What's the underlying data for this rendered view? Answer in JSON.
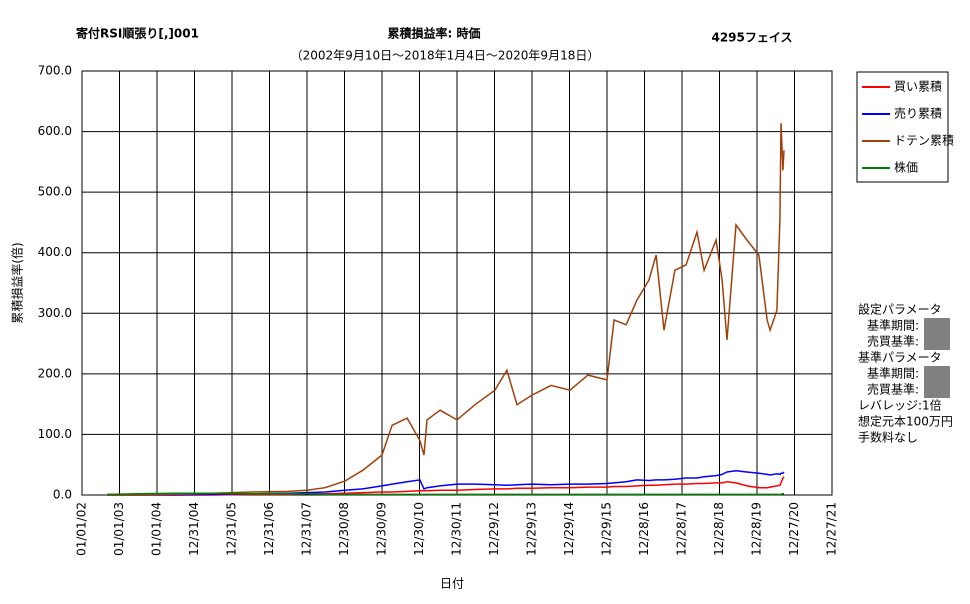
{
  "chart_data": {
    "type": "line",
    "title": "累積損益率:  時価",
    "title_left": "寄付RSI順張り[,]001",
    "title_right": "4295フェイス",
    "subtitle": "（2002年9月10日～2018年1月4日～2020年9月18日）",
    "ylabel": "累積損益率(倍)",
    "xlabel": "日付",
    "xlim": [
      2002,
      2022
    ],
    "xticks": [
      {
        "value": 2002,
        "label": "01/01/02"
      },
      {
        "value": 2003,
        "label": "01/01/03"
      },
      {
        "value": 2004,
        "label": "01/01/04"
      },
      {
        "value": 2005,
        "label": "12/31/04"
      },
      {
        "value": 2006,
        "label": "12/31/05"
      },
      {
        "value": 2007,
        "label": "12/31/06"
      },
      {
        "value": 2008,
        "label": "12/31/07"
      },
      {
        "value": 2009,
        "label": "12/30/08"
      },
      {
        "value": 2010,
        "label": "12/30/09"
      },
      {
        "value": 2011,
        "label": "12/30/10"
      },
      {
        "value": 2012,
        "label": "12/30/11"
      },
      {
        "value": 2013,
        "label": "12/29/12"
      },
      {
        "value": 2014,
        "label": "12/29/13"
      },
      {
        "value": 2015,
        "label": "12/29/14"
      },
      {
        "value": 2016,
        "label": "12/29/15"
      },
      {
        "value": 2017,
        "label": "12/28/16"
      },
      {
        "value": 2018,
        "label": "12/28/17"
      },
      {
        "value": 2019,
        "label": "12/28/18"
      },
      {
        "value": 2020,
        "label": "12/28/19"
      },
      {
        "value": 2021,
        "label": "12/27/20"
      },
      {
        "value": 2022,
        "label": "12/27/21"
      }
    ],
    "ylim": [
      0,
      700
    ],
    "yticks": [
      {
        "value": 0,
        "label": "0.0"
      },
      {
        "value": 100,
        "label": "100.0"
      },
      {
        "value": 200,
        "label": "200.0"
      },
      {
        "value": 300,
        "label": "300.0"
      },
      {
        "value": 400,
        "label": "400.0"
      },
      {
        "value": 500,
        "label": "500.0"
      },
      {
        "value": 600,
        "label": "600.0"
      },
      {
        "value": 700,
        "label": "700.0"
      }
    ],
    "grid": true,
    "legend": "right",
    "x": [
      2002.67,
      2003.5,
      2004.5,
      2005.5,
      2006.5,
      2007.5,
      2008.0,
      2008.48,
      2009.01,
      2009.49,
      2010.0,
      2010.27,
      2010.67,
      2011.01,
      2011.12,
      2011.2,
      2011.55,
      2012.0,
      2012.48,
      2013.01,
      2013.33,
      2013.6,
      2014.0,
      2014.51,
      2015.01,
      2015.49,
      2016.0,
      2016.19,
      2016.51,
      2016.8,
      2017.12,
      2017.31,
      2017.52,
      2017.81,
      2018.11,
      2018.4,
      2018.59,
      2018.91,
      2019.07,
      2019.2,
      2019.44,
      2019.73,
      2020.05,
      2020.27,
      2020.35,
      2020.53,
      2020.61,
      2020.64,
      2020.69,
      2020.72
    ],
    "series": [
      {
        "name": "買い累積",
        "color": "#ff0000",
        "values": [
          0,
          0,
          0,
          0,
          1,
          1,
          2,
          2,
          3,
          4,
          5,
          5,
          6,
          7,
          7,
          7,
          8,
          8,
          9,
          10,
          10,
          11,
          11,
          12,
          12,
          13,
          13,
          14,
          14,
          15,
          16,
          16,
          17,
          18,
          18,
          19,
          19,
          20,
          20,
          22,
          20,
          15,
          12,
          12,
          13,
          15,
          16,
          20,
          28,
          30
        ]
      },
      {
        "name": "売り累積",
        "color": "#0000ff",
        "values": [
          0,
          0,
          0,
          1,
          2,
          3,
          4,
          5,
          8,
          10,
          15,
          18,
          22,
          25,
          10,
          12,
          15,
          18,
          18,
          17,
          16,
          17,
          18,
          17,
          18,
          18,
          19,
          20,
          22,
          25,
          24,
          25,
          25,
          26,
          28,
          28,
          30,
          32,
          34,
          38,
          40,
          38,
          36,
          34,
          33,
          35,
          34,
          36,
          36,
          38
        ]
      },
      {
        "name": "ドテン累積",
        "color": "#a0400a",
        "values": [
          0,
          0,
          1,
          3,
          5,
          6,
          8,
          12,
          23,
          41,
          66,
          115,
          127,
          90,
          66,
          124,
          140,
          124,
          149,
          173,
          206,
          149,
          165,
          181,
          173,
          198,
          190,
          289,
          281,
          322,
          355,
          396,
          272,
          371,
          380,
          434,
          371,
          421,
          355,
          256,
          446,
          421,
          396,
          289,
          272,
          305,
          454,
          614,
          536,
          569
        ]
      },
      {
        "name": "株価",
        "color": "#008000",
        "values": [
          1,
          2,
          3,
          3,
          2,
          2,
          2,
          1,
          1,
          1,
          1,
          1,
          1,
          1,
          1,
          1,
          1,
          1,
          1,
          1,
          1,
          1,
          1,
          1,
          1,
          1,
          1,
          1,
          1,
          1,
          1,
          1,
          1,
          1,
          1,
          1,
          1,
          1,
          1,
          1,
          1,
          1,
          1,
          1,
          1,
          1,
          1,
          1,
          2,
          2
        ]
      }
    ]
  },
  "side_panel": {
    "lines": [
      "設定パラメータ",
      "基準期間:",
      "売買基準:",
      "基準パラメータ",
      "基準期間:",
      "売買基準:",
      "レバレッジ:1倍",
      "想定元本100万円",
      "手数料なし"
    ]
  }
}
